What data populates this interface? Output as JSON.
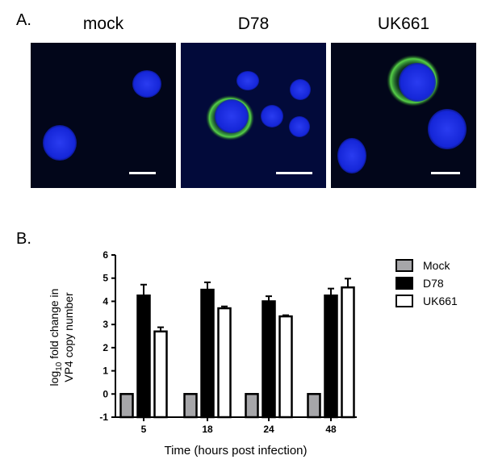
{
  "panel_a": {
    "label": "A.",
    "titles": [
      "mock",
      "D78",
      "UK661"
    ],
    "colors": {
      "nucleus": "#1a2fe0",
      "envelope": "#3fc23a",
      "background": "#02061a",
      "scale_bar": "#ffffff"
    }
  },
  "panel_b": {
    "label": "B."
  },
  "chart_data": {
    "type": "bar",
    "categories": [
      "5",
      "18",
      "24",
      "48"
    ],
    "xlabel": "Time (hours post infection)",
    "ylabel_prefix": "log",
    "ylabel_sub": "10",
    "ylabel_line1_rest": " fold change in",
    "ylabel_line2": "VP4 copy number",
    "ylim": [
      -1,
      6
    ],
    "yticks": [
      "-1",
      "0",
      "1",
      "2",
      "3",
      "4",
      "5",
      "6"
    ],
    "legend_position": "right",
    "series": [
      {
        "name": "Mock",
        "values": [
          0,
          0,
          0,
          0
        ],
        "errors": [
          0,
          0,
          0,
          0
        ],
        "color": "#a6a6a9"
      },
      {
        "name": "D78",
        "values": [
          4.25,
          4.5,
          4.0,
          4.25
        ],
        "errors": [
          0.47,
          0.32,
          0.22,
          0.3
        ],
        "color": "#000000"
      },
      {
        "name": "UK661",
        "values": [
          2.7,
          3.7,
          3.35,
          4.6
        ],
        "errors": [
          0.18,
          0.08,
          0.05,
          0.38
        ],
        "color": "#ffffff"
      }
    ]
  }
}
